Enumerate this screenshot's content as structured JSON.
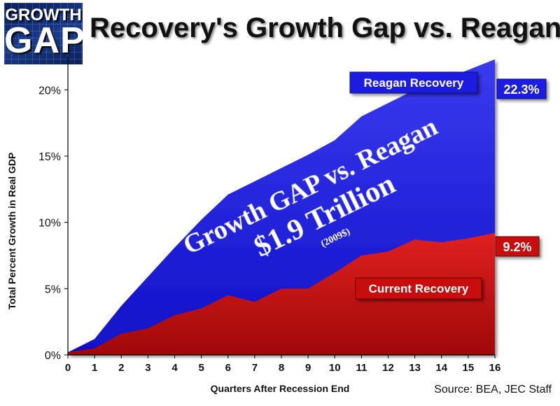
{
  "header": {
    "logo_top": "GROWTH",
    "logo_bottom": "GAP",
    "title": "Recovery's Growth Gap vs. Reagan"
  },
  "source": "Source: BEA, JEC Staff",
  "colors": {
    "reagan_band": "#1c1ce0",
    "current_band": "#d01010",
    "reagan_label_bg": "#1c1ce0",
    "current_label_bg": "#c81010"
  },
  "chart_data": {
    "type": "area",
    "xlabel": "Quarters After Recession End",
    "ylabel": "Total Percent Growth in Real GDP",
    "x": [
      0,
      1,
      2,
      3,
      4,
      5,
      6,
      7,
      8,
      9,
      10,
      11,
      12,
      13,
      14,
      15,
      16
    ],
    "xlim": [
      0,
      16
    ],
    "ylim": [
      0,
      22.5
    ],
    "yticks": [
      0,
      5,
      10,
      15,
      20
    ],
    "ytick_labels": [
      "0%",
      "5%",
      "10%",
      "15%",
      "20%"
    ],
    "xtick_labels": [
      "0",
      "1",
      "2",
      "3",
      "4",
      "5",
      "6",
      "7",
      "8",
      "9",
      "10",
      "11",
      "12",
      "13",
      "14",
      "15",
      "16"
    ],
    "grid": false,
    "series": [
      {
        "name": "Reagan Recovery",
        "values": [
          0.2,
          1.2,
          3.7,
          5.9,
          8.1,
          10.2,
          12.1,
          13.1,
          14.1,
          15.1,
          16.2,
          18.0,
          19.0,
          20.0,
          20.7,
          21.5,
          22.3
        ],
        "end_label": "22.3%"
      },
      {
        "name": "Current Recovery",
        "values": [
          0.2,
          0.5,
          1.6,
          2.0,
          3.0,
          3.5,
          4.5,
          4.0,
          5.0,
          5.0,
          6.2,
          7.5,
          7.8,
          8.7,
          8.5,
          8.8,
          9.2
        ],
        "end_label": "9.2%"
      }
    ],
    "annotation": {
      "line1": "Growth GAP vs. Reagan",
      "line2": "$1.9 Trillion",
      "line3": "(2009$)"
    }
  }
}
